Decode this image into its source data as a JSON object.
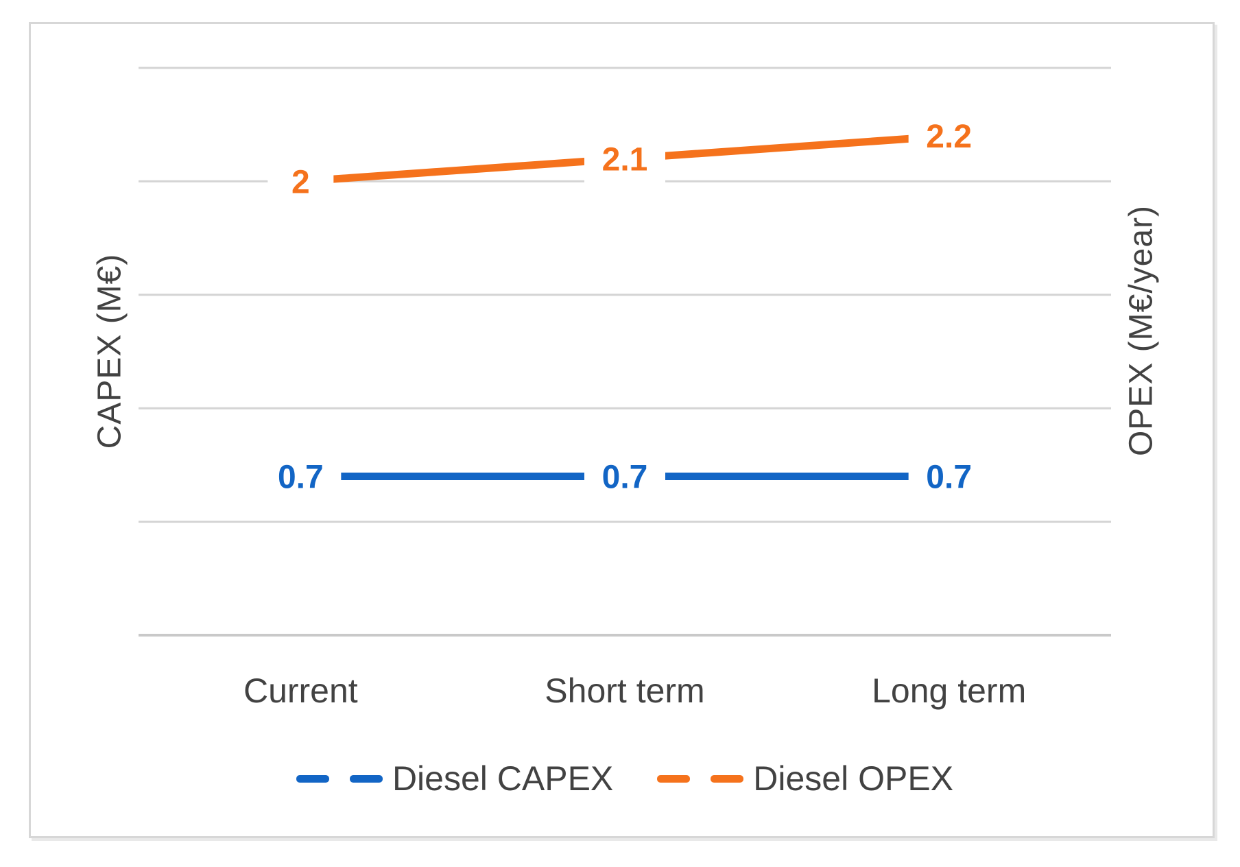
{
  "chart_data": {
    "type": "line",
    "categories": [
      "Current",
      "Short term",
      "Long term"
    ],
    "series": [
      {
        "name": "Diesel CAPEX",
        "values": [
          0.7,
          0.7,
          0.7
        ],
        "labels": [
          "0.7",
          "0.7",
          "0.7"
        ],
        "color": "#1265c5",
        "axis": "left"
      },
      {
        "name": "Diesel OPEX",
        "values": [
          2,
          2.1,
          2.2
        ],
        "labels": [
          "2",
          "2.1",
          "2.2"
        ],
        "color": "#f5721c",
        "axis": "right"
      }
    ],
    "title": "",
    "xlabel": "",
    "ylabel_left": "CAPEX (M€)",
    "ylabel_right": "OPEX (M€/year)",
    "ylim": [
      0,
      2.5
    ],
    "grid_step": 0.5,
    "grid": true,
    "legend_position": "bottom",
    "gridline_color": "#d4d4d4",
    "axis_line_color": "#c9c9c9",
    "text_color": "#424242"
  }
}
